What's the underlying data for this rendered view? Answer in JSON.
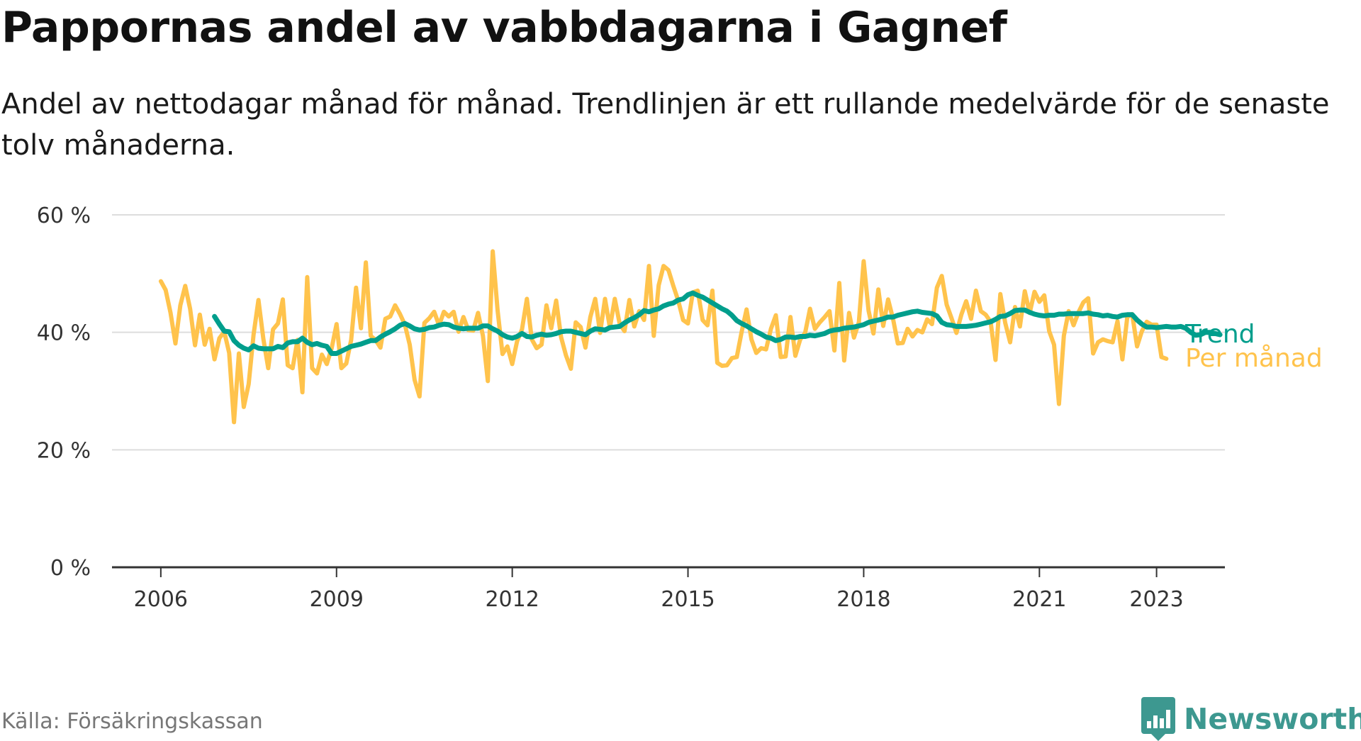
{
  "chart_data": {
    "type": "line",
    "title": "Pappornas andel av vabbdagarna i Gagnef",
    "subtitle": "Andel av nettodagar månad för månad. Trendlinjen är ett rullande medelvärde för de senaste tolv månaderna.",
    "ylim": [
      0,
      60
    ],
    "yticks": [
      0,
      20,
      40,
      60
    ],
    "ytick_labels": [
      "0 %",
      "20 %",
      "40 %",
      "60 %"
    ],
    "xlim": [
      "2005-03",
      "2024-03"
    ],
    "xticks": [
      "2006-01",
      "2009-01",
      "2012-01",
      "2015-01",
      "2018-01",
      "2021-01",
      "2023-01"
    ],
    "xtick_labels": [
      "2006",
      "2009",
      "2012",
      "2015",
      "2018",
      "2021",
      "2023"
    ],
    "grid": true,
    "series": [
      {
        "name": "Per månad",
        "color": "#ffc34c",
        "start": "2006-01",
        "values": [
          48.7,
          47.2,
          43.3,
          38.1,
          44.6,
          47.9,
          44.0,
          37.8,
          43.0,
          37.9,
          40.6,
          35.4,
          39.0,
          40.1,
          36.5,
          24.7,
          36.4,
          27.3,
          31.2,
          39.6,
          45.5,
          38.9,
          33.9,
          40.5,
          41.5,
          45.6,
          34.4,
          33.9,
          38.7,
          29.8,
          49.4,
          33.9,
          33.0,
          36.2,
          34.6,
          37.3,
          41.4,
          33.9,
          34.7,
          38.7,
          47.6,
          40.7,
          51.9,
          39.4,
          38.7,
          37.4,
          42.3,
          42.7,
          44.6,
          43.1,
          41.3,
          37.9,
          31.9,
          29.1,
          41.6,
          42.4,
          43.5,
          41.2,
          43.5,
          42.7,
          43.5,
          40.1,
          42.6,
          40.4,
          40.3,
          43.3,
          39.4,
          31.7,
          53.8,
          43.7,
          36.3,
          37.6,
          34.6,
          38.5,
          40.5,
          45.7,
          38.8,
          37.3,
          37.9,
          44.6,
          40.7,
          45.4,
          39.2,
          36.1,
          33.8,
          41.7,
          40.9,
          37.4,
          42.6,
          45.7,
          39.9,
          45.7,
          40.8,
          45.7,
          41.5,
          40.2,
          45.5,
          41.0,
          43.6,
          42.1,
          51.3,
          39.4,
          48.0,
          51.3,
          50.6,
          47.9,
          45.4,
          42.1,
          41.5,
          46.8,
          47.1,
          42.1,
          41.2,
          47.1,
          34.8,
          34.3,
          34.4,
          35.6,
          35.8,
          40.1,
          43.9,
          38.8,
          36.5,
          37.3,
          37.1,
          40.6,
          42.9,
          35.8,
          35.9,
          42.6,
          36.0,
          38.8,
          39.9,
          44.0,
          40.6,
          41.7,
          42.6,
          43.6,
          36.9,
          48.4,
          35.2,
          43.3,
          39.1,
          41.7,
          52.1,
          43.7,
          39.8,
          47.3,
          41.1,
          45.6,
          42.3,
          38.1,
          38.2,
          40.6,
          39.3,
          40.4,
          40.0,
          42.2,
          41.4,
          47.6,
          49.6,
          44.7,
          42.4,
          39.9,
          43.0,
          45.3,
          42.3,
          47.1,
          43.6,
          43.0,
          41.8,
          35.3,
          46.5,
          41.6,
          38.3,
          44.3,
          41.0,
          47.0,
          43.3,
          46.9,
          45.2,
          46.3,
          40.2,
          37.9,
          27.8,
          39.4,
          43.6,
          41.2,
          43.4,
          45.1,
          45.8,
          36.4,
          38.3,
          38.8,
          38.5,
          38.3,
          41.9,
          35.4,
          42.6,
          43.1,
          37.6,
          40.2,
          41.8,
          41.3,
          41.3,
          35.8,
          35.5
        ]
      },
      {
        "name": "Trend",
        "color": "#009e8c",
        "start": "2006-12",
        "values": [
          42.7,
          41.4,
          40.2,
          40.1,
          38.6,
          37.8,
          37.3,
          37.0,
          37.7,
          37.3,
          37.2,
          37.2,
          37.2,
          37.6,
          37.4,
          38.2,
          38.4,
          38.4,
          39.0,
          38.3,
          37.9,
          38.1,
          37.8,
          37.6,
          36.4,
          36.4,
          36.8,
          37.2,
          37.6,
          37.8,
          38.0,
          38.3,
          38.6,
          38.6,
          39.2,
          39.7,
          40.1,
          40.6,
          41.2,
          41.5,
          41.1,
          40.6,
          40.4,
          40.5,
          40.8,
          40.9,
          41.2,
          41.4,
          41.3,
          40.9,
          40.7,
          40.6,
          40.7,
          40.7,
          40.7,
          41.1,
          41.1,
          40.6,
          40.2,
          39.6,
          39.2,
          39.0,
          39.3,
          39.8,
          39.3,
          39.2,
          39.5,
          39.7,
          39.5,
          39.6,
          39.8,
          40.1,
          40.2,
          40.2,
          40.0,
          39.8,
          39.6,
          40.2,
          40.6,
          40.5,
          40.4,
          40.8,
          40.9,
          41.0,
          41.6,
          42.1,
          42.5,
          43.0,
          43.7,
          43.5,
          43.8,
          44.0,
          44.5,
          44.8,
          45.0,
          45.5,
          45.7,
          46.4,
          46.7,
          46.3,
          46.0,
          45.5,
          45.0,
          44.5,
          44.0,
          43.6,
          42.9,
          42.0,
          41.5,
          41.1,
          40.6,
          40.1,
          39.7,
          39.2,
          39.0,
          38.6,
          38.8,
          39.2,
          39.2,
          39.1,
          39.3,
          39.3,
          39.5,
          39.4,
          39.6,
          39.8,
          40.2,
          40.4,
          40.5,
          40.7,
          40.8,
          40.9,
          41.1,
          41.3,
          41.7,
          41.9,
          42.1,
          42.3,
          42.6,
          42.6,
          42.9,
          43.1,
          43.3,
          43.5,
          43.6,
          43.4,
          43.3,
          43.2,
          42.8,
          41.7,
          41.3,
          41.2,
          41.0,
          41.0,
          41.0,
          41.1,
          41.2,
          41.4,
          41.6,
          41.8,
          42.2,
          42.7,
          42.8,
          43.2,
          43.7,
          43.8,
          43.8,
          43.4,
          43.1,
          42.9,
          42.8,
          42.9,
          42.9,
          43.1,
          43.1,
          43.2,
          43.2,
          43.2,
          43.2,
          43.3,
          43.1,
          43.0,
          42.8,
          42.9,
          42.7,
          42.6,
          42.9,
          43.0,
          43.0,
          42.1,
          41.4,
          40.9,
          40.9,
          40.8,
          40.9,
          41.0,
          40.9,
          40.9,
          41.0,
          40.7,
          40.0,
          39.5,
          39.6,
          40.0,
          40.0,
          39.8,
          39.6
        ]
      }
    ]
  },
  "footer": {
    "source": "Källa: Försäkringskassan",
    "brand": "Newsworthy",
    "brand_color": "#3d9890"
  }
}
